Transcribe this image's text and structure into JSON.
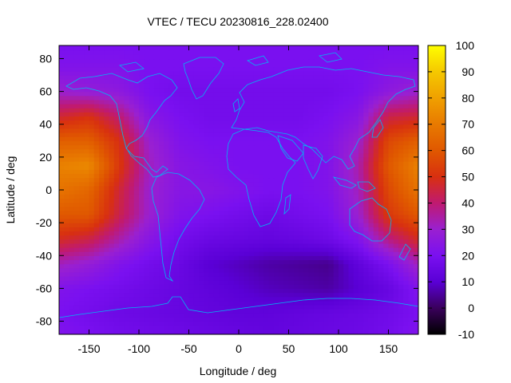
{
  "chart_data": {
    "type": "heatmap",
    "title": "VTEC / TECU 20230816_228.02400",
    "xlabel": "Longitude / deg",
    "ylabel": "Latitude / deg",
    "xlim": [
      -180,
      180
    ],
    "ylim": [
      -88,
      88
    ],
    "x_ticks": [
      -150,
      -100,
      -50,
      0,
      50,
      100,
      150
    ],
    "y_ticks": [
      -80,
      -60,
      -40,
      -20,
      0,
      20,
      40,
      60,
      80
    ],
    "colorbar": {
      "min": -10,
      "max": 100,
      "ticks": [
        -10,
        0,
        10,
        20,
        30,
        40,
        50,
        60,
        70,
        80,
        90,
        100
      ]
    },
    "colors": {
      "c_neg10": "#000000",
      "c_0": "#3a005c",
      "c_10": "#5a00d6",
      "c_20": "#7a10f0",
      "c_30": "#9a20d0",
      "c_40": "#c01a70",
      "c_50": "#d83010",
      "c_60": "#e05800",
      "c_70": "#e87a00",
      "c_80": "#f0a000",
      "c_90": "#f5c800",
      "c_100": "#ffff00",
      "coastline": "#00b8f0"
    },
    "grid_lon": [
      -180,
      -150,
      -120,
      -90,
      -60,
      -30,
      0,
      30,
      60,
      90,
      120,
      150,
      180
    ],
    "grid_lat": [
      -87.5,
      -75,
      -60,
      -45,
      -30,
      -15,
      0,
      15,
      30,
      45,
      60,
      75,
      87.5
    ],
    "vtec_grid": [
      [
        22,
        20,
        18,
        17,
        16,
        15,
        14,
        13,
        14,
        15,
        16,
        18,
        22
      ],
      [
        20,
        18,
        16,
        15,
        14,
        13,
        12,
        12,
        13,
        14,
        15,
        17,
        20
      ],
      [
        22,
        20,
        18,
        16,
        14,
        12,
        10,
        8,
        7,
        6,
        10,
        14,
        22
      ],
      [
        32,
        28,
        22,
        18,
        15,
        10,
        8,
        6,
        5,
        4,
        12,
        20,
        32
      ],
      [
        48,
        44,
        34,
        24,
        18,
        15,
        14,
        13,
        14,
        16,
        22,
        38,
        48
      ],
      [
        60,
        60,
        44,
        30,
        22,
        20,
        18,
        16,
        18,
        20,
        30,
        52,
        60
      ],
      [
        68,
        64,
        46,
        30,
        24,
        24,
        22,
        20,
        20,
        22,
        32,
        56,
        68
      ],
      [
        72,
        74,
        52,
        32,
        24,
        22,
        20,
        20,
        20,
        22,
        34,
        60,
        72
      ],
      [
        62,
        62,
        50,
        30,
        22,
        20,
        20,
        20,
        20,
        22,
        30,
        56,
        62
      ],
      [
        46,
        50,
        40,
        24,
        20,
        18,
        18,
        18,
        18,
        20,
        24,
        44,
        46
      ],
      [
        30,
        28,
        26,
        20,
        18,
        18,
        18,
        18,
        18,
        18,
        20,
        26,
        30
      ],
      [
        22,
        22,
        22,
        20,
        20,
        20,
        20,
        20,
        20,
        20,
        20,
        22,
        22
      ],
      [
        20,
        20,
        20,
        20,
        20,
        20,
        20,
        20,
        20,
        20,
        20,
        20,
        20
      ]
    ]
  }
}
